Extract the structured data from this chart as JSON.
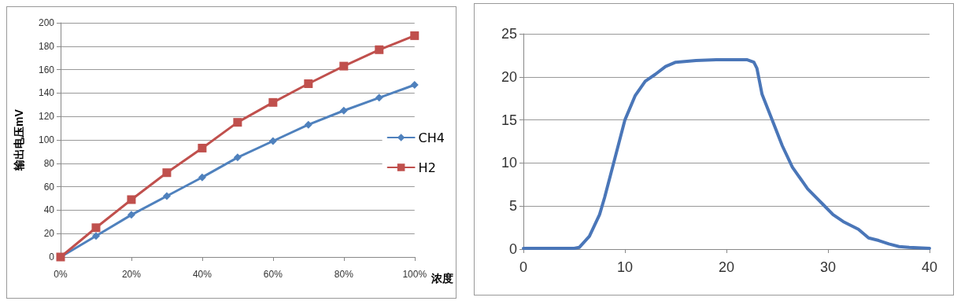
{
  "chart_data": [
    {
      "type": "line",
      "xlabel": "浓度",
      "ylabel": "输出电压mV",
      "x": [
        0,
        10,
        20,
        30,
        40,
        50,
        60,
        70,
        80,
        90,
        100
      ],
      "xlim": [
        0,
        100
      ],
      "xticks": [
        {
          "value": 0,
          "label": "0%"
        },
        {
          "value": 20,
          "label": "20%"
        },
        {
          "value": 40,
          "label": "40%"
        },
        {
          "value": 60,
          "label": "60%"
        },
        {
          "value": 80,
          "label": "80%"
        },
        {
          "value": 100,
          "label": "100%"
        }
      ],
      "ylim": [
        0,
        200
      ],
      "yticks": [
        0,
        20,
        40,
        60,
        80,
        100,
        120,
        140,
        160,
        180,
        200
      ],
      "grid": "y",
      "legend": "right",
      "line_style": "solid",
      "series": [
        {
          "name": "CH4",
          "color": "#4f81bd",
          "marker": "diamond",
          "values": [
            0,
            18,
            36,
            52,
            68,
            85,
            99,
            113,
            125,
            136,
            147
          ]
        },
        {
          "name": "H2",
          "color": "#c0504d",
          "marker": "square",
          "values": [
            0,
            25,
            49,
            72,
            93,
            115,
            132,
            148,
            163,
            177,
            189
          ]
        }
      ]
    },
    {
      "type": "line",
      "x": [
        0,
        5,
        5.5,
        6.5,
        7.5,
        8,
        9,
        10,
        11,
        12,
        13,
        14,
        15,
        17,
        19,
        21,
        22,
        22.7,
        23,
        23.5,
        24.5,
        25.5,
        26.5,
        28,
        29.5,
        30.5,
        31.5,
        33,
        34,
        35,
        36,
        37,
        38,
        40
      ],
      "xlim": [
        0,
        40
      ],
      "xticks": [
        0,
        10,
        20,
        30,
        40
      ],
      "ylim": [
        0,
        25
      ],
      "yticks": [
        0,
        5,
        10,
        15,
        20,
        25
      ],
      "grid": "y",
      "marker": "none",
      "line_style": "solid",
      "series": [
        {
          "color": "#4a76b8",
          "values": [
            0.1,
            0.1,
            0.2,
            1.5,
            4,
            6,
            10.5,
            15,
            17.8,
            19.5,
            20.3,
            21.2,
            21.7,
            21.9,
            22,
            22,
            22,
            21.7,
            21,
            18,
            15,
            12,
            9.5,
            7,
            5.2,
            4,
            3.2,
            2.3,
            1.3,
            1,
            0.6,
            0.3,
            0.2,
            0.1
          ]
        }
      ]
    }
  ]
}
